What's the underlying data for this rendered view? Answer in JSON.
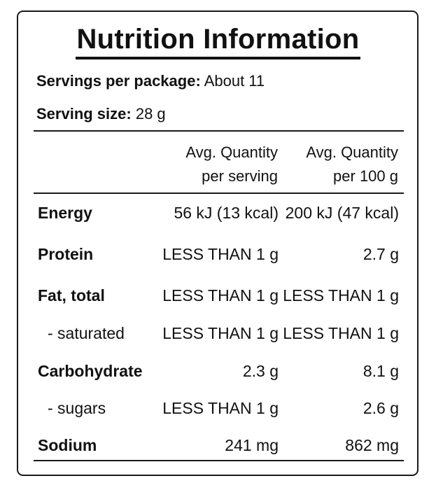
{
  "title": "Nutrition Information",
  "servings_per_package": {
    "label": "Servings per package:",
    "value": "About 11"
  },
  "serving_size": {
    "label": "Serving size:",
    "value": "28 g"
  },
  "columns": [
    {
      "line1": "Avg. Quantity",
      "line2": "per serving"
    },
    {
      "line1": "Avg. Quantity",
      "line2": "per 100 g"
    }
  ],
  "rows": [
    {
      "name": "Energy",
      "per_serving": "56 kJ (13 kcal)",
      "per_100g": "200 kJ (47 kcal)"
    },
    {
      "name": "Protein",
      "per_serving": "LESS THAN 1 g",
      "per_100g": "2.7 g"
    },
    {
      "name": "Fat, total",
      "per_serving": "LESS THAN 1 g",
      "per_100g": "LESS THAN 1 g"
    },
    {
      "name": "- saturated",
      "per_serving": "LESS THAN 1 g",
      "per_100g": "LESS THAN 1 g"
    },
    {
      "name": "Carbohydrate",
      "per_serving": "2.3 g",
      "per_100g": "8.1 g"
    },
    {
      "name": "- sugars",
      "per_serving": "LESS THAN 1 g",
      "per_100g": "2.6 g"
    },
    {
      "name": "Sodium",
      "per_serving": "241 mg",
      "per_100g": "862 mg"
    }
  ]
}
